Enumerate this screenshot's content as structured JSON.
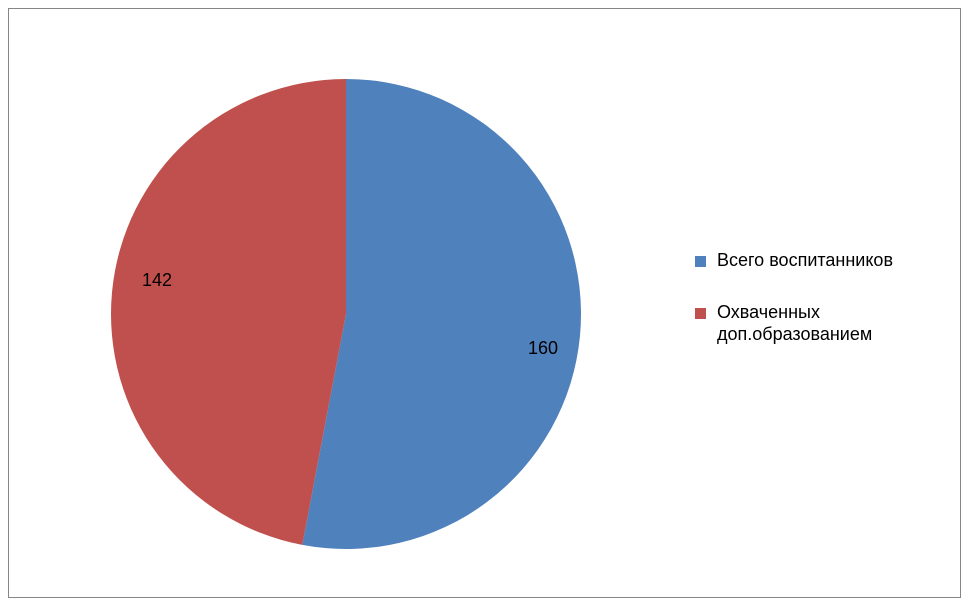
{
  "chart_data": {
    "type": "pie",
    "categories": [
      "Всего воспитанников",
      "Охваченных доп.образованием"
    ],
    "values": [
      160,
      142
    ],
    "data_labels": [
      "160",
      "142"
    ],
    "colors": [
      "#4f81bd",
      "#c0504d"
    ],
    "legend_position": "right"
  },
  "legend": {
    "items": [
      {
        "label": "Всего воспитанников",
        "color": "#4f81bd"
      },
      {
        "label": "Охваченных доп.образованием",
        "color": "#c0504d"
      }
    ]
  }
}
